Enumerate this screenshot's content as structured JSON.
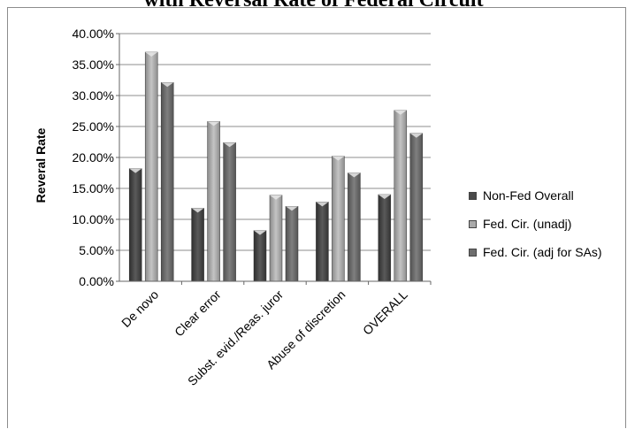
{
  "chart_data": {
    "type": "bar",
    "title": "with Reversal Rate of Federal Circuit",
    "xlabel": "",
    "ylabel": "Reveral Rate",
    "ylim": [
      0,
      0.4
    ],
    "yticks": [
      "0.00%",
      "5.00%",
      "10.00%",
      "15.00%",
      "20.00%",
      "25.00%",
      "30.00%",
      "35.00%",
      "40.00%"
    ],
    "categories": [
      "De novo",
      "Clear error",
      "Subst. evid./Reas. juror",
      "Abuse of discretion",
      "OVERALL"
    ],
    "series": [
      {
        "name": "Non-Fed Overall",
        "color": "#4a4a4a",
        "values": [
          0.182,
          0.118,
          0.082,
          0.128,
          0.14
        ]
      },
      {
        "name": "Fed. Cir. (unadj)",
        "color": "#a9a9a9",
        "values": [
          0.37,
          0.258,
          0.139,
          0.202,
          0.276
        ]
      },
      {
        "name": "Fed. Cir. (adj for SAs)",
        "color": "#6e6e6e",
        "values": [
          0.321,
          0.224,
          0.121,
          0.175,
          0.239
        ]
      }
    ],
    "grid": true,
    "legend_position": "right"
  }
}
